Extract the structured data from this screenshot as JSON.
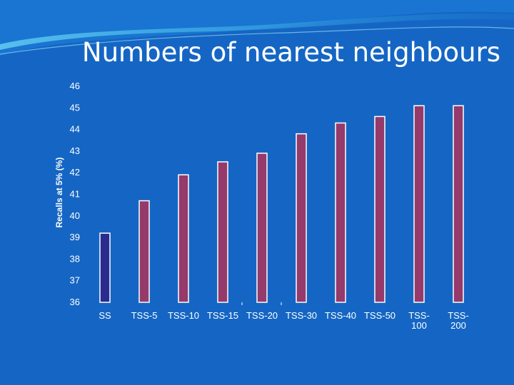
{
  "slide": {
    "title": "Numbers of nearest neighbours"
  },
  "colors": {
    "background": "#1566c4",
    "bar_ss": "#2b2a8e",
    "bar_tss": "#953a6a",
    "bar_border": "#ffffff",
    "text": "#ffffff"
  },
  "chart_data": {
    "type": "bar",
    "title": "Numbers of nearest neighbours",
    "xlabel": "",
    "ylabel": "Recalls at 5% (%)",
    "ylim": [
      36,
      46
    ],
    "yticks": [
      36,
      37,
      38,
      39,
      40,
      41,
      42,
      43,
      44,
      45,
      46
    ],
    "grid": false,
    "categories": [
      "SS",
      "TSS-5",
      "TSS-10",
      "TSS-15",
      "TSS-20",
      "TSS-30",
      "TSS-40",
      "TSS-50",
      "TSS-100",
      "TSS-200"
    ],
    "category_label_lines": [
      [
        "SS"
      ],
      [
        "TSS-5"
      ],
      [
        "TSS-10"
      ],
      [
        "TSS-15"
      ],
      [
        "TSS-20"
      ],
      [
        "TSS-30"
      ],
      [
        "TSS-40"
      ],
      [
        "TSS-50"
      ],
      [
        "TSS-",
        "100"
      ],
      [
        "TSS-",
        "200"
      ]
    ],
    "values": [
      39.2,
      40.7,
      41.9,
      42.5,
      42.9,
      43.8,
      44.3,
      44.6,
      45.1,
      45.1
    ]
  }
}
